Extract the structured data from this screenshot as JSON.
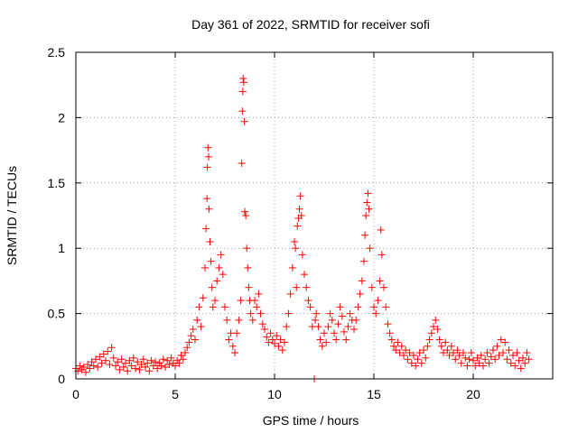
{
  "chart_data": {
    "type": "scatter",
    "title": "Day 361 of 2022, SRMTID for receiver sofi",
    "xlabel": "GPS time / hours",
    "ylabel": "SRMTID / TECUs",
    "xlim": [
      0,
      24.0
    ],
    "ylim": [
      0,
      2.5
    ],
    "xticks": [
      0,
      5,
      10,
      15,
      20
    ],
    "yticks": [
      0,
      0.5,
      1,
      1.5,
      2,
      2.5
    ],
    "xtick_labels": [
      "0",
      "5",
      "10",
      "15",
      "20"
    ],
    "ytick_labels": [
      "0",
      "0.5",
      "1",
      "1.5",
      "2",
      "2.5"
    ],
    "grid": true,
    "marker": "plus",
    "series": [
      {
        "name": "SRMTID",
        "color": "#ff0000",
        "points": [
          [
            0.0,
            0.08
          ],
          [
            0.1,
            0.06
          ],
          [
            0.2,
            0.1
          ],
          [
            0.3,
            0.07
          ],
          [
            0.4,
            0.09
          ],
          [
            0.5,
            0.05
          ],
          [
            0.6,
            0.11
          ],
          [
            0.7,
            0.08
          ],
          [
            0.8,
            0.13
          ],
          [
            0.9,
            0.1
          ],
          [
            1.0,
            0.15
          ],
          [
            1.1,
            0.09
          ],
          [
            1.2,
            0.17
          ],
          [
            1.3,
            0.12
          ],
          [
            1.4,
            0.19
          ],
          [
            1.5,
            0.14
          ],
          [
            1.6,
            0.21
          ],
          [
            1.7,
            0.11
          ],
          [
            1.8,
            0.24
          ],
          [
            1.9,
            0.16
          ],
          [
            2.0,
            0.1
          ],
          [
            2.1,
            0.13
          ],
          [
            2.2,
            0.07
          ],
          [
            2.3,
            0.15
          ],
          [
            2.4,
            0.09
          ],
          [
            2.5,
            0.12
          ],
          [
            2.6,
            0.06
          ],
          [
            2.7,
            0.14
          ],
          [
            2.8,
            0.1
          ],
          [
            2.9,
            0.16
          ],
          [
            3.0,
            0.08
          ],
          [
            3.1,
            0.13
          ],
          [
            3.2,
            0.07
          ],
          [
            3.3,
            0.11
          ],
          [
            3.4,
            0.15
          ],
          [
            3.5,
            0.09
          ],
          [
            3.6,
            0.12
          ],
          [
            3.7,
            0.06
          ],
          [
            3.8,
            0.14
          ],
          [
            3.9,
            0.1
          ],
          [
            4.0,
            0.13
          ],
          [
            4.1,
            0.08
          ],
          [
            4.2,
            0.12
          ],
          [
            4.3,
            0.1
          ],
          [
            4.4,
            0.15
          ],
          [
            4.5,
            0.09
          ],
          [
            4.6,
            0.14
          ],
          [
            4.7,
            0.11
          ],
          [
            4.8,
            0.16
          ],
          [
            4.9,
            0.12
          ],
          [
            5.0,
            0.1
          ],
          [
            5.1,
            0.14
          ],
          [
            5.2,
            0.12
          ],
          [
            5.3,
            0.18
          ],
          [
            5.4,
            0.15
          ],
          [
            5.5,
            0.2
          ],
          [
            5.6,
            0.24
          ],
          [
            5.7,
            0.28
          ],
          [
            5.8,
            0.33
          ],
          [
            5.9,
            0.38
          ],
          [
            6.0,
            0.3
          ],
          [
            6.1,
            0.45
          ],
          [
            6.2,
            0.55
          ],
          [
            6.3,
            0.4
          ],
          [
            6.4,
            0.62
          ],
          [
            6.5,
            0.85
          ],
          [
            6.55,
            1.15
          ],
          [
            6.6,
            1.38
          ],
          [
            6.62,
            1.62
          ],
          [
            6.65,
            1.77
          ],
          [
            6.68,
            1.7
          ],
          [
            6.7,
            1.3
          ],
          [
            6.75,
            1.05
          ],
          [
            6.8,
            0.9
          ],
          [
            6.85,
            0.7
          ],
          [
            6.9,
            0.55
          ],
          [
            7.0,
            0.6
          ],
          [
            7.1,
            0.75
          ],
          [
            7.2,
            0.85
          ],
          [
            7.3,
            0.95
          ],
          [
            7.4,
            0.8
          ],
          [
            7.5,
            0.55
          ],
          [
            7.6,
            0.45
          ],
          [
            7.7,
            0.3
          ],
          [
            7.8,
            0.35
          ],
          [
            7.9,
            0.25
          ],
          [
            8.0,
            0.2
          ],
          [
            8.1,
            0.35
          ],
          [
            8.2,
            0.45
          ],
          [
            8.3,
            0.6
          ],
          [
            8.35,
            1.65
          ],
          [
            8.38,
            2.05
          ],
          [
            8.4,
            2.2
          ],
          [
            8.42,
            2.3
          ],
          [
            8.45,
            2.27
          ],
          [
            8.48,
            1.97
          ],
          [
            8.5,
            1.28
          ],
          [
            8.55,
            1.25
          ],
          [
            8.6,
            1.0
          ],
          [
            8.65,
            0.85
          ],
          [
            8.7,
            0.7
          ],
          [
            8.75,
            0.6
          ],
          [
            8.8,
            0.5
          ],
          [
            8.9,
            0.45
          ],
          [
            9.0,
            0.6
          ],
          [
            9.1,
            0.55
          ],
          [
            9.2,
            0.65
          ],
          [
            9.3,
            0.5
          ],
          [
            9.4,
            0.42
          ],
          [
            9.5,
            0.38
          ],
          [
            9.6,
            0.32
          ],
          [
            9.7,
            0.28
          ],
          [
            9.8,
            0.35
          ],
          [
            9.9,
            0.3
          ],
          [
            10.0,
            0.27
          ],
          [
            10.1,
            0.33
          ],
          [
            10.2,
            0.25
          ],
          [
            10.3,
            0.3
          ],
          [
            10.4,
            0.22
          ],
          [
            10.5,
            0.28
          ],
          [
            10.6,
            0.4
          ],
          [
            10.7,
            0.5
          ],
          [
            10.8,
            0.65
          ],
          [
            10.9,
            0.85
          ],
          [
            11.0,
            1.05
          ],
          [
            11.05,
            1.0
          ],
          [
            11.1,
            0.7
          ],
          [
            11.15,
            1.17
          ],
          [
            11.2,
            1.23
          ],
          [
            11.25,
            1.3
          ],
          [
            11.3,
            1.4
          ],
          [
            11.35,
            1.25
          ],
          [
            11.4,
            0.95
          ],
          [
            11.5,
            0.8
          ],
          [
            11.6,
            0.7
          ],
          [
            11.7,
            0.6
          ],
          [
            11.8,
            0.55
          ],
          [
            11.9,
            0.4
          ],
          [
            12.0,
            0.0
          ],
          [
            12.05,
            0.45
          ],
          [
            12.1,
            0.5
          ],
          [
            12.2,
            0.4
          ],
          [
            12.3,
            0.3
          ],
          [
            12.4,
            0.25
          ],
          [
            12.5,
            0.35
          ],
          [
            12.6,
            0.28
          ],
          [
            12.7,
            0.4
          ],
          [
            12.8,
            0.5
          ],
          [
            12.9,
            0.45
          ],
          [
            13.0,
            0.35
          ],
          [
            13.1,
            0.3
          ],
          [
            13.2,
            0.42
          ],
          [
            13.3,
            0.55
          ],
          [
            13.4,
            0.48
          ],
          [
            13.5,
            0.36
          ],
          [
            13.6,
            0.3
          ],
          [
            13.7,
            0.4
          ],
          [
            13.8,
            0.5
          ],
          [
            13.9,
            0.45
          ],
          [
            14.0,
            0.38
          ],
          [
            14.1,
            0.45
          ],
          [
            14.2,
            0.55
          ],
          [
            14.3,
            0.65
          ],
          [
            14.4,
            0.75
          ],
          [
            14.5,
            0.9
          ],
          [
            14.55,
            1.1
          ],
          [
            14.6,
            1.25
          ],
          [
            14.65,
            1.35
          ],
          [
            14.7,
            1.42
          ],
          [
            14.75,
            1.3
          ],
          [
            14.8,
            1.0
          ],
          [
            14.9,
            0.7
          ],
          [
            15.0,
            0.55
          ],
          [
            15.1,
            0.5
          ],
          [
            15.2,
            0.6
          ],
          [
            15.3,
            0.75
          ],
          [
            15.35,
            1.14
          ],
          [
            15.4,
            0.95
          ],
          [
            15.5,
            0.7
          ],
          [
            15.6,
            0.55
          ],
          [
            15.7,
            0.42
          ],
          [
            15.8,
            0.35
          ],
          [
            15.9,
            0.3
          ],
          [
            16.0,
            0.25
          ],
          [
            16.1,
            0.22
          ],
          [
            16.2,
            0.28
          ],
          [
            16.3,
            0.2
          ],
          [
            16.4,
            0.25
          ],
          [
            16.5,
            0.18
          ],
          [
            16.6,
            0.22
          ],
          [
            16.7,
            0.15
          ],
          [
            16.8,
            0.2
          ],
          [
            16.9,
            0.12
          ],
          [
            17.0,
            0.18
          ],
          [
            17.1,
            0.1
          ],
          [
            17.2,
            0.15
          ],
          [
            17.3,
            0.2
          ],
          [
            17.4,
            0.12
          ],
          [
            17.5,
            0.22
          ],
          [
            17.6,
            0.16
          ],
          [
            17.7,
            0.25
          ],
          [
            17.8,
            0.3
          ],
          [
            17.9,
            0.35
          ],
          [
            18.0,
            0.4
          ],
          [
            18.1,
            0.45
          ],
          [
            18.2,
            0.38
          ],
          [
            18.3,
            0.3
          ],
          [
            18.4,
            0.25
          ],
          [
            18.5,
            0.2
          ],
          [
            18.6,
            0.28
          ],
          [
            18.7,
            0.22
          ],
          [
            18.8,
            0.18
          ],
          [
            18.9,
            0.25
          ],
          [
            19.0,
            0.2
          ],
          [
            19.1,
            0.15
          ],
          [
            19.2,
            0.22
          ],
          [
            19.3,
            0.18
          ],
          [
            19.4,
            0.12
          ],
          [
            19.5,
            0.2
          ],
          [
            19.6,
            0.16
          ],
          [
            19.7,
            0.1
          ],
          [
            19.8,
            0.15
          ],
          [
            19.9,
            0.2
          ],
          [
            20.0,
            0.14
          ],
          [
            20.1,
            0.1
          ],
          [
            20.2,
            0.16
          ],
          [
            20.3,
            0.12
          ],
          [
            20.4,
            0.18
          ],
          [
            20.5,
            0.1
          ],
          [
            20.6,
            0.15
          ],
          [
            20.7,
            0.2
          ],
          [
            20.8,
            0.12
          ],
          [
            20.9,
            0.17
          ],
          [
            21.0,
            0.22
          ],
          [
            21.1,
            0.15
          ],
          [
            21.2,
            0.25
          ],
          [
            21.3,
            0.18
          ],
          [
            21.4,
            0.3
          ],
          [
            21.5,
            0.2
          ],
          [
            21.6,
            0.28
          ],
          [
            21.7,
            0.15
          ],
          [
            21.8,
            0.22
          ],
          [
            21.9,
            0.12
          ],
          [
            22.0,
            0.18
          ],
          [
            22.1,
            0.1
          ],
          [
            22.2,
            0.2
          ],
          [
            22.3,
            0.14
          ],
          [
            22.4,
            0.08
          ],
          [
            22.5,
            0.16
          ],
          [
            22.6,
            0.12
          ],
          [
            22.7,
            0.2
          ],
          [
            22.8,
            0.15
          ]
        ]
      }
    ]
  }
}
